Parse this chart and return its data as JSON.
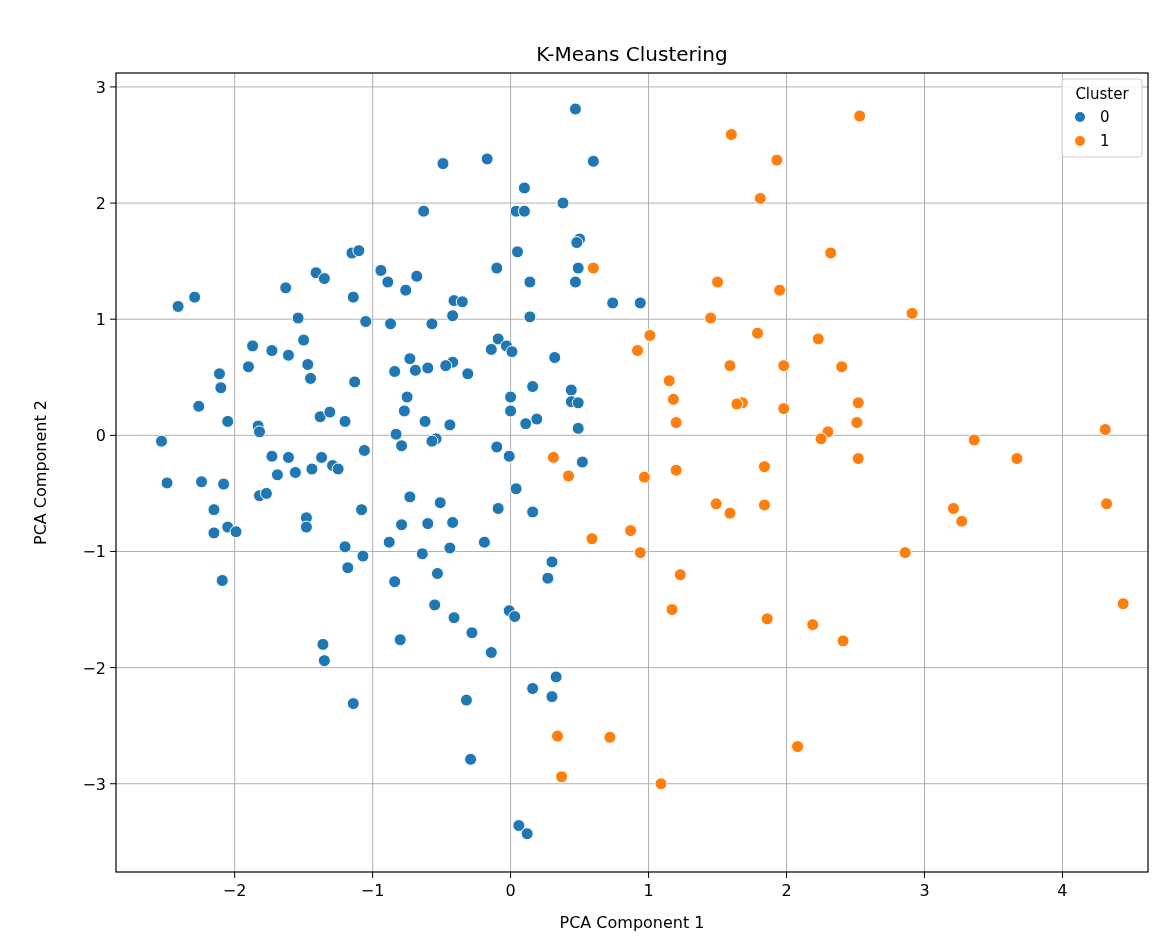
{
  "chart_data": {
    "type": "scatter",
    "title": "K-Means Clustering",
    "xlabel": "PCA Component 1",
    "ylabel": "PCA Component 2",
    "legend_title": "Cluster",
    "legend": "top right",
    "grid": true,
    "marker": "circle",
    "xlim": [
      -2.86,
      4.62
    ],
    "ylim": [
      -3.76,
      3.12
    ],
    "xticks": [
      -2,
      -1,
      0,
      1,
      2,
      3,
      4
    ],
    "yticks": [
      -3,
      -2,
      -1,
      0,
      1,
      2,
      3
    ],
    "series": [
      {
        "name": "0",
        "color": "#1f77b4",
        "x": [
          0.47,
          0.6,
          -0.49,
          -0.17,
          0.1,
          0.38,
          0.04,
          0.1,
          -0.63,
          0.5,
          0.48,
          0.05,
          -1.15,
          -1.1,
          -0.1,
          0.49,
          0.14,
          0.47,
          -0.94,
          -0.89,
          -0.68,
          -0.76,
          -1.41,
          -1.35,
          -1.14,
          -1.63,
          -0.41,
          -0.35,
          -0.42,
          0.14,
          0.74,
          0.94,
          -1.05,
          -1.54,
          -0.87,
          -0.57,
          -2.41,
          -2.29,
          -1.5,
          -1.87,
          -1.73,
          -1.61,
          -1.9,
          -2.11,
          -2.1,
          -2.26,
          -2.05,
          -1.47,
          -1.45,
          -1.13,
          -0.73,
          -0.69,
          -0.6,
          -0.42,
          -0.47,
          -0.31,
          -0.84,
          -0.09,
          -0.03,
          -0.14,
          0.01,
          0.32,
          0.16,
          0.44,
          0.44,
          0.49,
          -0.75,
          -0.77,
          0.0,
          0.0,
          0.19,
          0.11,
          -0.62,
          -0.44,
          -1.38,
          -1.31,
          -1.2,
          0.49,
          -1.83,
          -1.82,
          -2.53,
          -0.83,
          -0.79,
          -0.54,
          -0.57,
          -1.06,
          -0.1,
          -0.01,
          -1.73,
          -1.61,
          0.52,
          -1.37,
          -1.29,
          -1.25,
          -1.44,
          -1.56,
          -1.69,
          -2.49,
          -2.24,
          -2.08,
          -1.82,
          -1.77,
          0.04,
          -0.73,
          -0.51,
          -2.15,
          -1.08,
          -1.48,
          -1.48,
          0.16,
          -0.79,
          -0.6,
          -0.42,
          -0.09,
          -2.05,
          -1.99,
          -2.15,
          -0.88,
          -1.2,
          -0.44,
          -0.19,
          -1.07,
          -0.64,
          0.3,
          -1.18,
          -0.53,
          -2.09,
          -0.84,
          0.27,
          -0.55,
          -0.01,
          0.03,
          -0.41,
          -0.8,
          -0.28,
          -1.36,
          -1.35,
          -0.14,
          0.16,
          0.33,
          0.3,
          -0.32,
          -1.14,
          -0.29,
          0.06,
          0.12
        ],
        "values": [
          2.81,
          2.36,
          2.34,
          2.38,
          2.13,
          2.0,
          1.93,
          1.93,
          1.93,
          1.69,
          1.66,
          1.58,
          1.57,
          1.59,
          1.44,
          1.44,
          1.32,
          1.32,
          1.42,
          1.32,
          1.37,
          1.25,
          1.4,
          1.35,
          1.19,
          1.27,
          1.16,
          1.15,
          1.03,
          1.02,
          1.14,
          1.14,
          0.98,
          1.01,
          0.96,
          0.96,
          1.11,
          1.19,
          0.82,
          0.77,
          0.73,
          0.69,
          0.59,
          0.53,
          0.41,
          0.25,
          0.12,
          0.61,
          0.49,
          0.46,
          0.66,
          0.56,
          0.58,
          0.63,
          0.6,
          0.53,
          0.55,
          0.83,
          0.77,
          0.74,
          0.72,
          0.67,
          0.42,
          0.39,
          0.29,
          0.28,
          0.33,
          0.21,
          0.33,
          0.21,
          0.14,
          0.1,
          0.12,
          0.09,
          0.16,
          0.2,
          0.12,
          0.06,
          0.08,
          0.03,
          -0.05,
          0.01,
          -0.09,
          -0.03,
          -0.05,
          -0.13,
          -0.1,
          -0.18,
          -0.18,
          -0.19,
          -0.23,
          -0.19,
          -0.26,
          -0.29,
          -0.29,
          -0.32,
          -0.34,
          -0.41,
          -0.4,
          -0.42,
          -0.52,
          -0.5,
          -0.46,
          -0.53,
          -0.58,
          -0.64,
          -0.64,
          -0.71,
          -0.79,
          -0.66,
          -0.77,
          -0.76,
          -0.75,
          -0.63,
          -0.79,
          -0.83,
          -0.84,
          -0.92,
          -0.96,
          -0.97,
          -0.92,
          -1.04,
          -1.02,
          -1.09,
          -1.14,
          -1.19,
          -1.25,
          -1.26,
          -1.23,
          -1.46,
          -1.51,
          -1.56,
          -1.57,
          -1.76,
          -1.7,
          -1.8,
          -1.94,
          -1.87,
          -2.18,
          -2.08,
          -2.25,
          -2.28,
          -2.31,
          -2.79,
          -3.36,
          -3.43
        ]
      },
      {
        "name": "1",
        "color": "#ff7f0e",
        "x": [
          2.53,
          1.6,
          1.93,
          1.81,
          2.32,
          0.6,
          1.5,
          1.95,
          2.91,
          1.45,
          1.01,
          0.92,
          1.79,
          2.23,
          1.59,
          1.98,
          2.4,
          1.15,
          1.18,
          1.68,
          1.64,
          2.52,
          1.98,
          2.51,
          1.2,
          2.3,
          2.25,
          4.31,
          3.36,
          2.52,
          3.67,
          0.31,
          1.84,
          0.42,
          1.2,
          0.97,
          1.49,
          1.59,
          1.84,
          4.32,
          3.21,
          3.27,
          0.87,
          0.59,
          0.94,
          2.86,
          1.23,
          1.17,
          1.86,
          2.19,
          2.41,
          4.44,
          0.34,
          0.72,
          2.08,
          0.37,
          1.09
        ],
        "values": [
          2.75,
          2.59,
          2.37,
          2.04,
          1.57,
          1.44,
          1.32,
          1.25,
          1.05,
          1.01,
          0.86,
          0.73,
          0.88,
          0.83,
          0.6,
          0.6,
          0.59,
          0.47,
          0.31,
          0.28,
          0.27,
          0.28,
          0.23,
          0.11,
          0.11,
          0.03,
          -0.03,
          0.05,
          -0.04,
          -0.2,
          -0.2,
          -0.19,
          -0.27,
          -0.35,
          -0.3,
          -0.36,
          -0.59,
          -0.67,
          -0.6,
          -0.59,
          -0.63,
          -0.74,
          -0.82,
          -0.89,
          -1.01,
          -1.01,
          -1.2,
          -1.5,
          -1.58,
          -1.63,
          -1.77,
          -1.45,
          -2.59,
          -2.6,
          -2.68,
          -2.94,
          -3.0
        ]
      }
    ]
  }
}
